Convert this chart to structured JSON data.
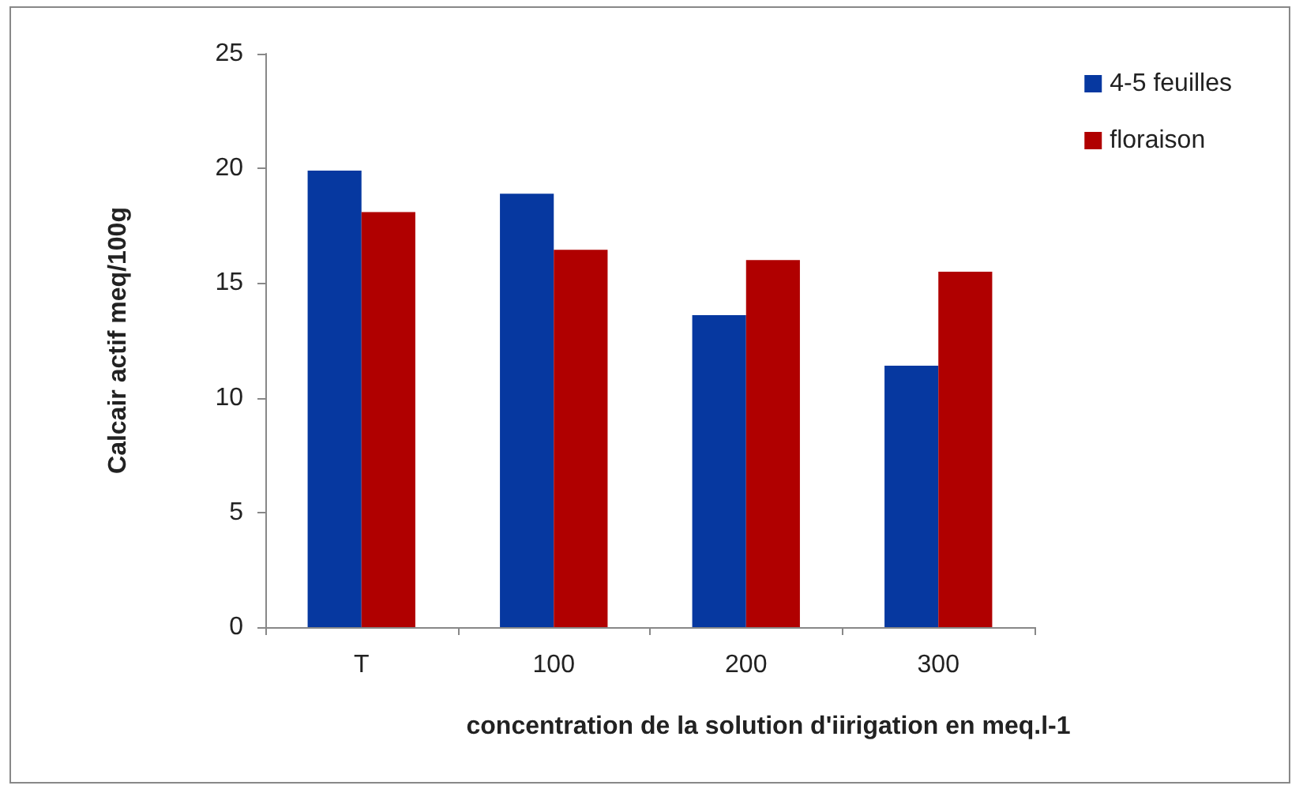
{
  "chart_data": {
    "type": "bar",
    "xlabel": "concentration de la solution d'iirigation en meq.l-1",
    "ylabel": "Calcair actif meq/100g",
    "categories": [
      "T",
      "100",
      "200",
      "300"
    ],
    "series": [
      {
        "name": "4-5 feuilles",
        "color": "#0638a0",
        "values": [
          19.9,
          18.9,
          13.6,
          11.4
        ]
      },
      {
        "name": "floraison",
        "color": "#b00000",
        "values": [
          18.1,
          16.45,
          16.0,
          15.5
        ]
      }
    ],
    "ylim": [
      0,
      25
    ],
    "yticks": [
      0,
      5,
      10,
      15,
      20,
      25
    ],
    "grid": false,
    "legend": "top right"
  }
}
